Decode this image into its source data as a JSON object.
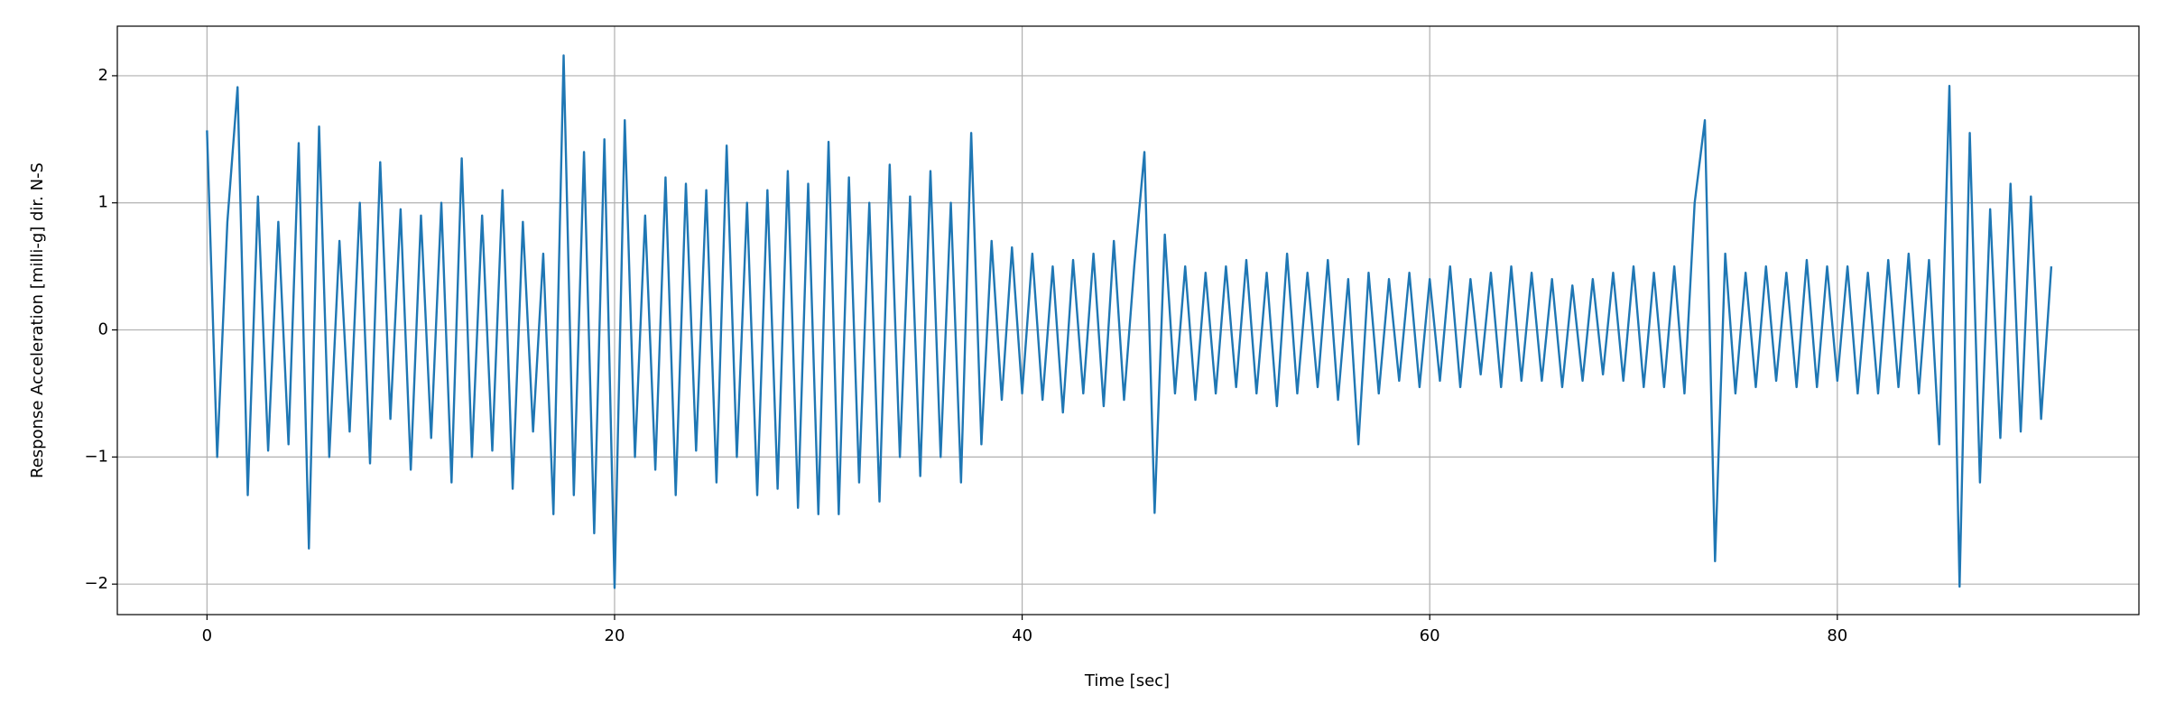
{
  "chart_data": {
    "type": "line",
    "xlabel": "Time [sec]",
    "ylabel": "Response Acceleration [milli-g] dir. N-S",
    "xlim": [
      -4.4,
      94.8
    ],
    "ylim": [
      -2.24,
      2.39
    ],
    "xticks": [
      0,
      20,
      40,
      60,
      80
    ],
    "yticks": [
      {
        "value": -2,
        "label": "−2"
      },
      {
        "value": -1,
        "label": "−1"
      },
      0,
      1,
      2
    ],
    "grid": true,
    "series": [
      {
        "color": "#1f77b4",
        "x": [
          0,
          0.5,
          1,
          1.5,
          2,
          2.5,
          3,
          3.5,
          4,
          4.5,
          5,
          5.5,
          6,
          6.5,
          7,
          7.5,
          8,
          8.5,
          9,
          9.5,
          10,
          10.5,
          11,
          11.5,
          12,
          12.5,
          13,
          13.5,
          14,
          14.5,
          15,
          15.5,
          16,
          16.5,
          17,
          17.5,
          18,
          18.5,
          19,
          19.5,
          20,
          20.5,
          21,
          21.5,
          22,
          22.5,
          23,
          23.5,
          24,
          24.5,
          25,
          25.5,
          26,
          26.5,
          27,
          27.5,
          28,
          28.5,
          29,
          29.5,
          30,
          30.5,
          31,
          31.5,
          32,
          32.5,
          33,
          33.5,
          34,
          34.5,
          35,
          35.5,
          36,
          36.5,
          37,
          37.5,
          38,
          38.5,
          39,
          39.5,
          40,
          40.5,
          41,
          41.5,
          42,
          42.5,
          43,
          43.5,
          44,
          44.5,
          45,
          45.5,
          46,
          46.5,
          47,
          47.5,
          48,
          48.5,
          49,
          49.5,
          50,
          50.5,
          51,
          51.5,
          52,
          52.5,
          53,
          53.5,
          54,
          54.5,
          55,
          55.5,
          56,
          56.5,
          57,
          57.5,
          58,
          58.5,
          59,
          59.5,
          60,
          60.5,
          61,
          61.5,
          62,
          62.5,
          63,
          63.5,
          64,
          64.5,
          65,
          65.5,
          66,
          66.5,
          67,
          67.5,
          68,
          68.5,
          69,
          69.5,
          70,
          70.5,
          71,
          71.5,
          72,
          72.5,
          73,
          73.5,
          74,
          74.5,
          75,
          75.5,
          76,
          76.5,
          77,
          77.5,
          78,
          78.5,
          79,
          79.5,
          80,
          80.5,
          81,
          81.5,
          82,
          82.5,
          83,
          83.5,
          84,
          84.5,
          85,
          85.5,
          86,
          86.5,
          87,
          87.5,
          88,
          88.5,
          89,
          89.5,
          90,
          90.5
        ],
        "values": [
          1.57,
          -1.0,
          0.85,
          1.91,
          -1.3,
          1.05,
          -0.95,
          0.85,
          -0.9,
          1.47,
          -1.72,
          1.6,
          -1.0,
          0.7,
          -0.8,
          1.0,
          -1.05,
          1.32,
          -0.7,
          0.95,
          -1.1,
          0.9,
          -0.85,
          1.0,
          -1.2,
          1.35,
          -1.0,
          0.9,
          -0.95,
          1.1,
          -1.25,
          0.85,
          -0.8,
          0.6,
          -1.45,
          2.16,
          -1.3,
          1.4,
          -1.6,
          1.5,
          -2.03,
          1.65,
          -1.0,
          0.9,
          -1.1,
          1.2,
          -1.3,
          1.15,
          -0.95,
          1.1,
          -1.2,
          1.45,
          -1.0,
          1.0,
          -1.3,
          1.1,
          -1.25,
          1.25,
          -1.4,
          1.15,
          -1.45,
          1.48,
          -1.45,
          1.2,
          -1.2,
          1.0,
          -1.35,
          1.3,
          -1.0,
          1.05,
          -1.15,
          1.25,
          -1.0,
          1.0,
          -1.2,
          1.55,
          -0.9,
          0.7,
          -0.55,
          0.65,
          -0.5,
          0.6,
          -0.55,
          0.5,
          -0.65,
          0.55,
          -0.5,
          0.6,
          -0.6,
          0.7,
          -0.55,
          0.5,
          1.4,
          -1.44,
          0.75,
          -0.5,
          0.5,
          -0.55,
          0.45,
          -0.5,
          0.5,
          -0.45,
          0.55,
          -0.5,
          0.45,
          -0.6,
          0.6,
          -0.5,
          0.45,
          -0.45,
          0.55,
          -0.55,
          0.4,
          -0.9,
          0.45,
          -0.5,
          0.4,
          -0.4,
          0.45,
          -0.45,
          0.4,
          -0.4,
          0.5,
          -0.45,
          0.4,
          -0.35,
          0.45,
          -0.45,
          0.5,
          -0.4,
          0.45,
          -0.4,
          0.4,
          -0.45,
          0.35,
          -0.4,
          0.4,
          -0.35,
          0.45,
          -0.4,
          0.5,
          -0.45,
          0.45,
          -0.45,
          0.5,
          -0.5,
          1.0,
          1.65,
          -1.82,
          0.6,
          -0.5,
          0.45,
          -0.45,
          0.5,
          -0.4,
          0.45,
          -0.45,
          0.55,
          -0.45,
          0.5,
          -0.4,
          0.5,
          -0.5,
          0.45,
          -0.5,
          0.55,
          -0.45,
          0.6,
          -0.5,
          0.55,
          -0.9,
          1.92,
          -2.02,
          1.55,
          -1.2,
          0.95,
          -0.85,
          1.15,
          -0.8,
          1.05,
          -0.7,
          0.5
        ]
      }
    ]
  }
}
